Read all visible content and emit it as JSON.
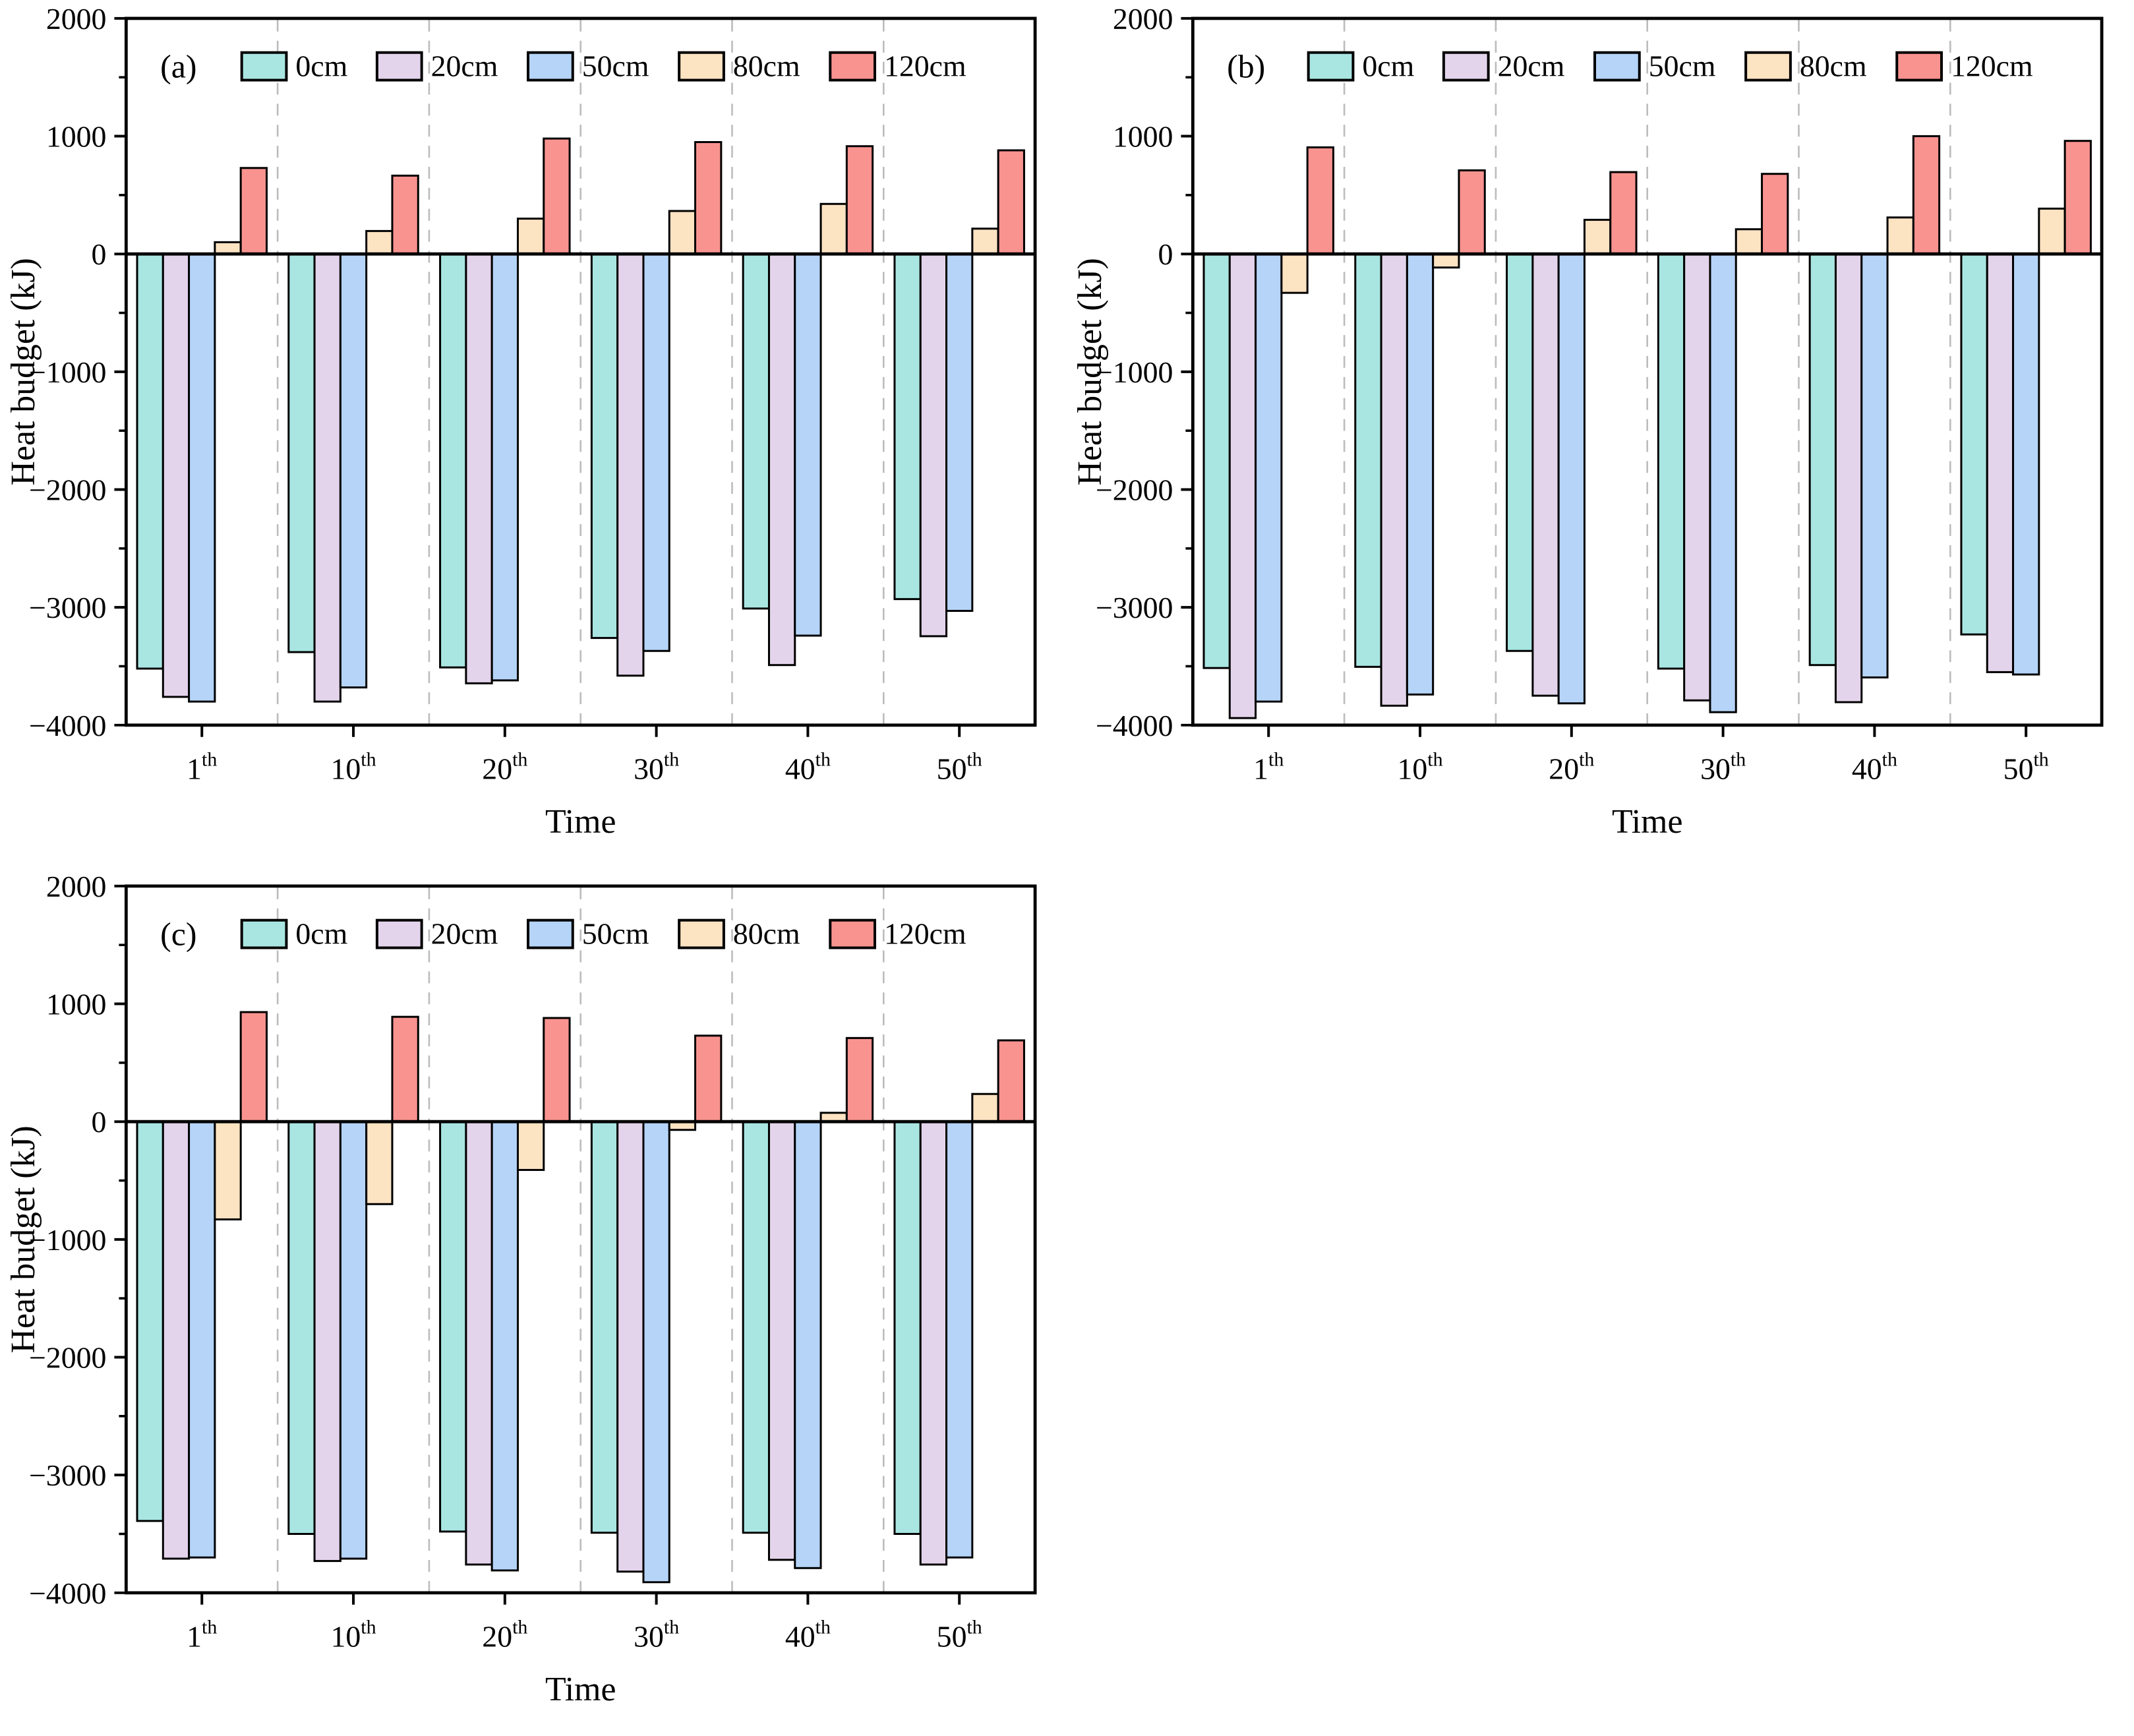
{
  "chart_data": {
    "type": "bar",
    "title": "",
    "ylabel": "Heat budget (kJ)",
    "xlabel": "Time",
    "ylim": [
      -4000,
      2000
    ],
    "yticks": [
      2000,
      1000,
      0,
      -1000,
      -2000,
      -3000,
      -4000
    ],
    "yminor_ticks": [
      1500,
      500,
      -500,
      -1500,
      -2500,
      -3500
    ],
    "categories": [
      "1",
      "10",
      "20",
      "30",
      "40",
      "50"
    ],
    "category_suffix": "th",
    "legend": [
      "0cm",
      "20cm",
      "50cm",
      "80cm",
      "120cm"
    ],
    "legend_position": "top-inside-horizontal",
    "grid": "vertical-dashed-between-categories",
    "colors": {
      "series": [
        "#a9e6e2",
        "#e4d4eb",
        "#b5d4f8",
        "#fce3c2",
        "#f9938f"
      ],
      "bar_outline": "#000000",
      "gridline": "#bcbcbc",
      "axis": "#000000",
      "text": "#000000",
      "background": "#ffffff"
    },
    "panels": [
      {
        "label": "(a)",
        "series": [
          {
            "name": "0cm",
            "values": [
              -3520,
              -3380,
              -3510,
              -3260,
              -3010,
              -2930
            ]
          },
          {
            "name": "20cm",
            "values": [
              -3760,
              -3800,
              -3645,
              -3580,
              -3490,
              -3245
            ]
          },
          {
            "name": "50cm",
            "values": [
              -3800,
              -3680,
              -3620,
              -3370,
              -3240,
              -3030
            ]
          },
          {
            "name": "80cm",
            "values": [
              100,
              195,
              300,
              365,
              425,
              215
            ]
          },
          {
            "name": "120cm",
            "values": [
              730,
              665,
              980,
              950,
              915,
              880
            ]
          }
        ]
      },
      {
        "label": "(b)",
        "series": [
          {
            "name": "0cm",
            "values": [
              -3515,
              -3505,
              -3370,
              -3520,
              -3490,
              -3230
            ]
          },
          {
            "name": "20cm",
            "values": [
              -3940,
              -3835,
              -3750,
              -3790,
              -3805,
              -3550
            ]
          },
          {
            "name": "50cm",
            "values": [
              -3800,
              -3740,
              -3815,
              -3890,
              -3595,
              -3570
            ]
          },
          {
            "name": "80cm",
            "values": [
              -330,
              -115,
              290,
              210,
              310,
              385
            ]
          },
          {
            "name": "120cm",
            "values": [
              905,
              710,
              695,
              680,
              1000,
              960
            ]
          }
        ]
      },
      {
        "label": "(c)",
        "series": [
          {
            "name": "0cm",
            "values": [
              -3390,
              -3500,
              -3480,
              -3490,
              -3490,
              -3500
            ]
          },
          {
            "name": "20cm",
            "values": [
              -3710,
              -3730,
              -3760,
              -3820,
              -3720,
              -3760
            ]
          },
          {
            "name": "50cm",
            "values": [
              -3700,
              -3710,
              -3810,
              -3910,
              -3790,
              -3700
            ]
          },
          {
            "name": "80cm",
            "values": [
              -830,
              -700,
              -410,
              -70,
              75,
              235
            ]
          },
          {
            "name": "120cm",
            "values": [
              930,
              890,
              880,
              730,
              710,
              690
            ]
          }
        ]
      }
    ]
  }
}
